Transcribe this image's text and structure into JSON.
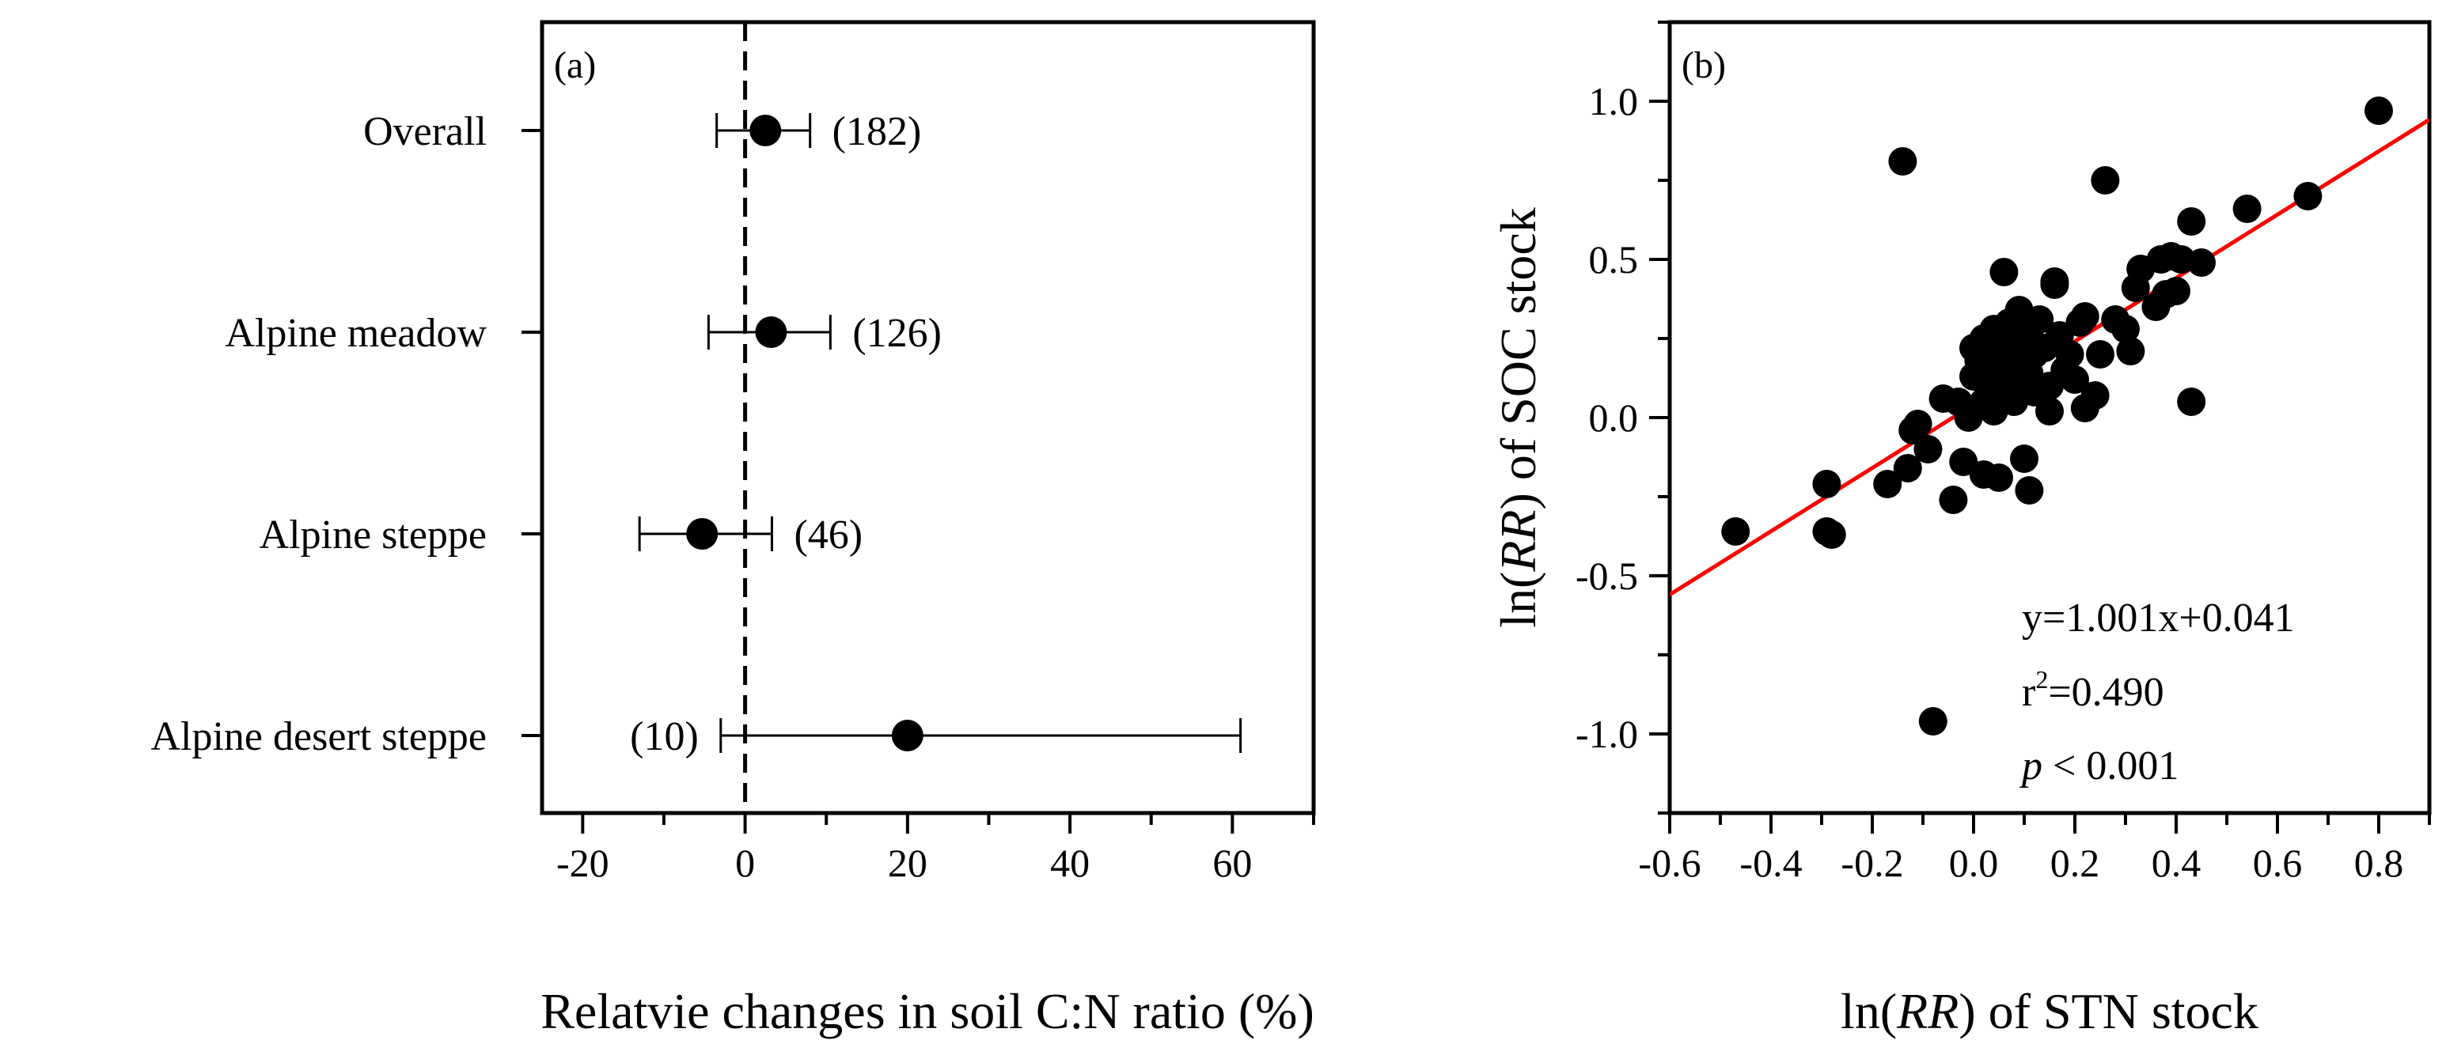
{
  "chart_data": [
    {
      "type": "forest",
      "panel_label": "(a)",
      "xlabel": "Relatvie changes in soil C:N ratio (%)",
      "xlim": [
        -25,
        70
      ],
      "xticks": [
        -20,
        0,
        20,
        40,
        60
      ],
      "reference_line": 0,
      "categories": [
        "Overall",
        "Alpine meadow",
        "Alpine steppe",
        "Alpine desert steppe"
      ],
      "points": [
        {
          "label": "Overall",
          "mean": 2.5,
          "lower": -3.5,
          "upper": 8.0,
          "n": "(182)",
          "n_pos": "right"
        },
        {
          "label": "Alpine meadow",
          "mean": 3.2,
          "lower": -4.5,
          "upper": 10.5,
          "n": "(126)",
          "n_pos": "right"
        },
        {
          "label": "Alpine steppe",
          "mean": -5.3,
          "lower": -13.0,
          "upper": 3.3,
          "n": "(46)",
          "n_pos": "right"
        },
        {
          "label": "Alpine desert steppe",
          "mean": 20.0,
          "lower": -3.0,
          "upper": 61.0,
          "n": "(10)",
          "n_pos": "left"
        }
      ]
    },
    {
      "type": "scatter",
      "panel_label": "(b)",
      "xlabel_pre": "ln(",
      "xlabel_italic": "RR",
      "xlabel_post": ") of STN stock",
      "ylabel_pre": "ln(",
      "ylabel_italic": "RR",
      "ylabel_post": ") of SOC stock",
      "xlim": [
        -0.6,
        0.9
      ],
      "ylim": [
        -1.25,
        1.25
      ],
      "xticks": [
        -0.6,
        -0.4,
        -0.2,
        0.0,
        0.2,
        0.4,
        0.6,
        0.8
      ],
      "xtick_labels": [
        "-0.6",
        "-0.4",
        "-0.2",
        "0.0",
        "0.2",
        "0.4",
        "0.6",
        "0.8"
      ],
      "yticks": [
        -1.0,
        -0.5,
        0.0,
        0.5,
        1.0
      ],
      "ytick_labels": [
        "-1.0",
        "-0.5",
        "0.0",
        "0.5",
        "1.0"
      ],
      "fit": {
        "slope": 1.001,
        "intercept": 0.041,
        "color": "#ff0000"
      },
      "annotations": {
        "equation": "y=1.001x+0.041",
        "r2_base": "r",
        "r2_sup": "2",
        "r2_value": "=0.490",
        "p_italic": "p",
        "p_rest": " < 0.001"
      },
      "points": [
        [
          -0.47,
          -0.36
        ],
        [
          -0.29,
          -0.21
        ],
        [
          -0.29,
          -0.36
        ],
        [
          -0.28,
          -0.37
        ],
        [
          -0.17,
          -0.21
        ],
        [
          -0.13,
          -0.16
        ],
        [
          -0.12,
          -0.04
        ],
        [
          -0.11,
          -0.02
        ],
        [
          -0.09,
          -0.1
        ],
        [
          -0.06,
          0.06
        ],
        [
          -0.04,
          -0.26
        ],
        [
          -0.03,
          0.05
        ],
        [
          -0.02,
          -0.14
        ],
        [
          -0.01,
          0.0
        ],
        [
          0.0,
          0.13
        ],
        [
          0.0,
          0.22
        ],
        [
          0.01,
          0.18
        ],
        [
          0.02,
          0.05
        ],
        [
          0.02,
          0.25
        ],
        [
          0.02,
          -0.18
        ],
        [
          0.03,
          0.1
        ],
        [
          0.03,
          0.15
        ],
        [
          0.04,
          0.28
        ],
        [
          0.04,
          0.02
        ],
        [
          0.05,
          0.2
        ],
        [
          0.05,
          0.08
        ],
        [
          0.05,
          -0.19
        ],
        [
          0.06,
          0.12
        ],
        [
          0.06,
          0.46
        ],
        [
          0.07,
          0.3
        ],
        [
          0.07,
          0.16
        ],
        [
          0.08,
          0.23
        ],
        [
          0.08,
          0.05
        ],
        [
          0.09,
          0.1
        ],
        [
          0.09,
          0.34
        ],
        [
          0.1,
          0.18
        ],
        [
          0.1,
          -0.13
        ],
        [
          0.11,
          0.27
        ],
        [
          0.11,
          0.14
        ],
        [
          0.11,
          -0.23
        ],
        [
          0.12,
          0.2
        ],
        [
          0.12,
          0.08
        ],
        [
          0.13,
          0.31
        ],
        [
          0.14,
          0.22
        ],
        [
          0.15,
          0.1
        ],
        [
          0.15,
          0.02
        ],
        [
          0.16,
          0.42
        ],
        [
          0.16,
          0.43
        ],
        [
          0.17,
          0.26
        ],
        [
          0.18,
          0.15
        ],
        [
          0.19,
          0.2
        ],
        [
          0.2,
          0.12
        ],
        [
          0.21,
          0.3
        ],
        [
          0.22,
          0.32
        ],
        [
          0.22,
          0.03
        ],
        [
          0.24,
          0.07
        ],
        [
          0.25,
          0.2
        ],
        [
          0.26,
          0.75
        ],
        [
          0.28,
          0.31
        ],
        [
          0.3,
          0.28
        ],
        [
          0.31,
          0.21
        ],
        [
          0.32,
          0.41
        ],
        [
          0.33,
          0.47
        ],
        [
          0.36,
          0.35
        ],
        [
          0.37,
          0.5
        ],
        [
          0.38,
          0.39
        ],
        [
          0.39,
          0.51
        ],
        [
          0.4,
          0.4
        ],
        [
          0.41,
          0.5
        ],
        [
          0.43,
          0.62
        ],
        [
          0.43,
          0.05
        ],
        [
          0.45,
          0.49
        ],
        [
          0.54,
          0.66
        ],
        [
          0.66,
          0.7
        ],
        [
          0.8,
          0.97
        ],
        [
          -0.14,
          0.81
        ],
        [
          -0.08,
          -0.96
        ]
      ]
    }
  ]
}
